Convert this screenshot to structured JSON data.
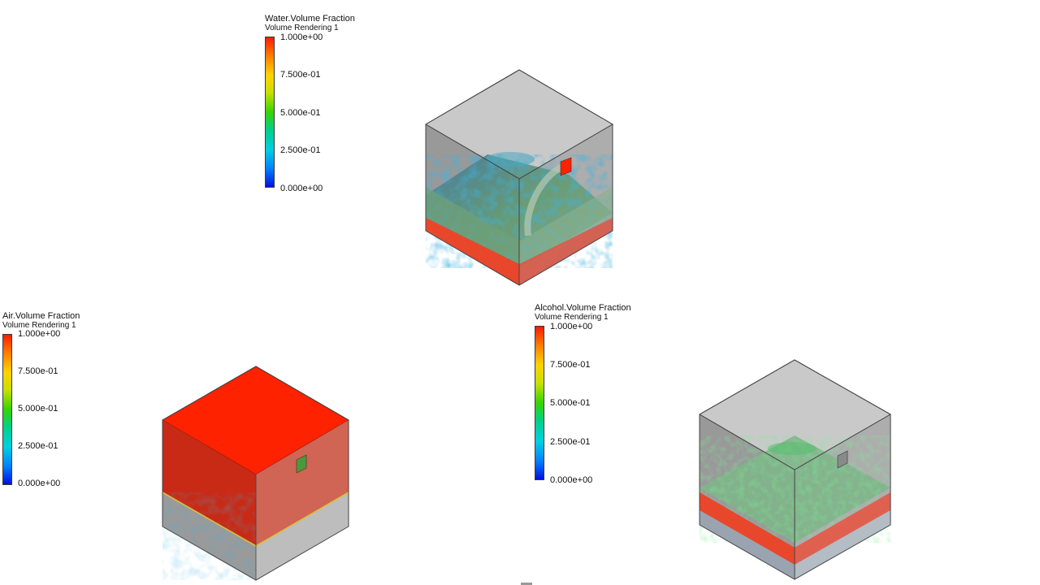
{
  "legends": {
    "water": {
      "title": "Water.Volume Fraction",
      "subtitle": "Volume Rendering 1",
      "ticks": [
        "1.000e+00",
        "7.500e-01",
        "5.000e-01",
        "2.500e-01",
        "0.000e+00"
      ]
    },
    "air": {
      "title": "Air.Volume Fraction",
      "subtitle": "Volume Rendering 1",
      "ticks": [
        "1.000e+00",
        "7.500e-01",
        "5.000e-01",
        "2.500e-01",
        "0.000e+00"
      ]
    },
    "alcohol": {
      "title": "Alcohol.Volume Fraction",
      "subtitle": "Volume Rendering 1",
      "ticks": [
        "1.000e+00",
        "7.500e-01",
        "5.000e-01",
        "2.500e-01",
        "0.000e+00"
      ]
    }
  },
  "colors": {
    "box_top": "#c9c9c9",
    "box_left": "#8c8c8c",
    "box_right": "#a6a6a6",
    "high_fraction": "#ff2200",
    "low_fraction": "#0010e0",
    "mid_fraction": "#36d400"
  }
}
